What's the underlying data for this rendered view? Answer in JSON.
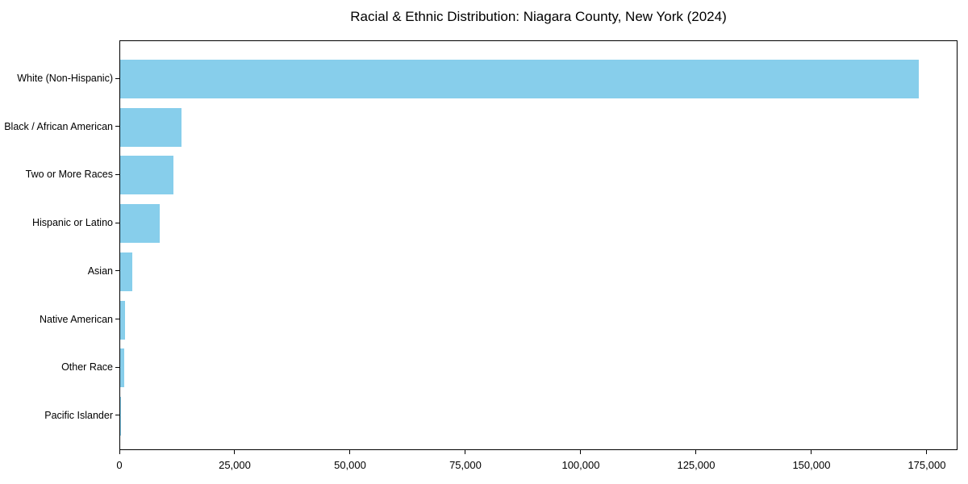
{
  "figure": {
    "background": "#ffffff"
  },
  "chart_data": {
    "type": "bar",
    "orientation": "horizontal",
    "title": "Racial & Ethnic Distribution: Niagara County, New York (2024)",
    "categories": [
      "White (Non-Hispanic)",
      "Black / African American",
      "Two or More Races",
      "Hispanic or Latino",
      "Asian",
      "Native American",
      "Other Race",
      "Pacific Islander"
    ],
    "values": [
      173000,
      13300,
      11500,
      8600,
      2600,
      1000,
      800,
      50
    ],
    "x_ticks": [
      {
        "value": 0,
        "label": "0"
      },
      {
        "value": 25000,
        "label": "25,000"
      },
      {
        "value": 50000,
        "label": "50,000"
      },
      {
        "value": 75000,
        "label": "75,000"
      },
      {
        "value": 100000,
        "label": "100,000"
      },
      {
        "value": 125000,
        "label": "125,000"
      },
      {
        "value": 150000,
        "label": "150,000"
      },
      {
        "value": 175000,
        "label": "175,000"
      }
    ],
    "xlim": [
      0,
      181650
    ],
    "xlabel": "",
    "ylabel": "",
    "bar_color": "#87CEEB",
    "axis_color": "#000000",
    "text_color": "#000000",
    "grid": false,
    "legend": null
  }
}
